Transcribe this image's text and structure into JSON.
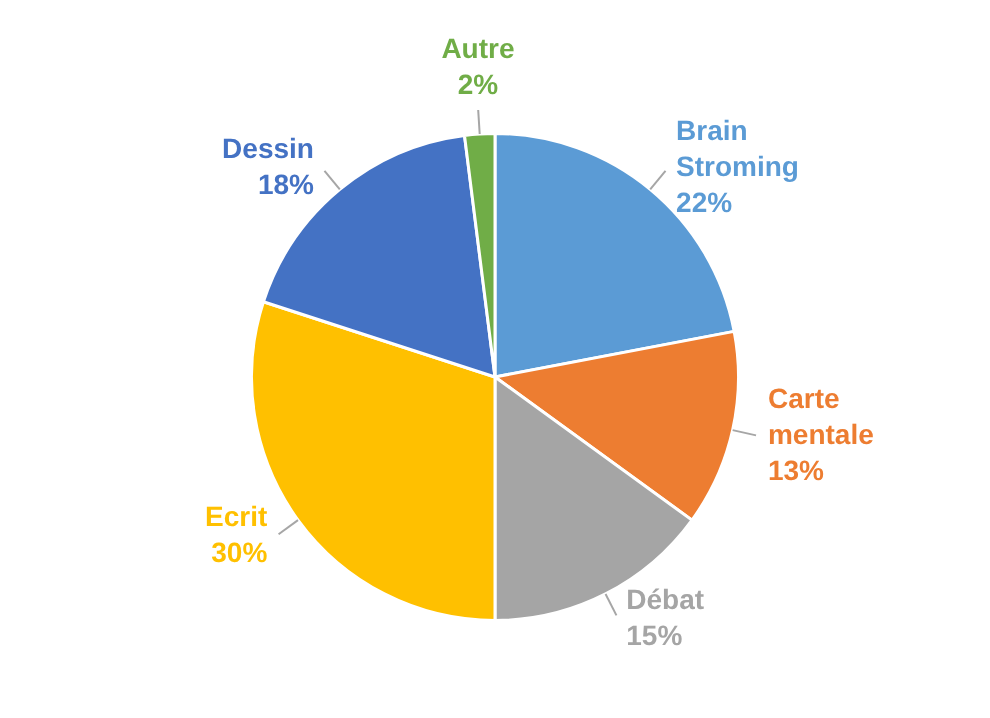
{
  "chart_data": {
    "type": "pie",
    "categories": [
      "Brain Stroming",
      "Carte mentale",
      "Débat",
      "Ecrit",
      "Dessin",
      "Autre"
    ],
    "values": [
      22,
      13,
      15,
      30,
      18,
      2
    ],
    "value_labels": [
      "22%",
      "13%",
      "15%",
      "30%",
      "18%",
      "2%"
    ],
    "colors": [
      "#5b9bd5",
      "#ed7d31",
      "#a5a5a5",
      "#ffc000",
      "#4472c4",
      "#70ad47"
    ],
    "legend": false
  }
}
